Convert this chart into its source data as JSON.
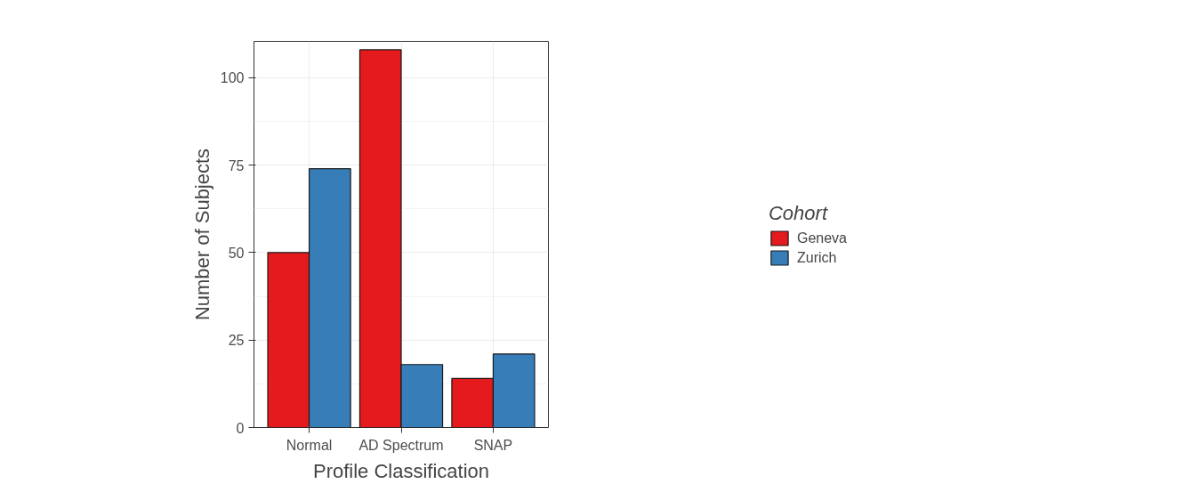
{
  "chart_data": {
    "type": "bar",
    "xlabel": "Profile Classification",
    "ylabel": "Number of Subjects",
    "legend_title": "Cohort",
    "categories": [
      "Normal",
      "AD Spectrum",
      "SNAP"
    ],
    "series": [
      {
        "name": "Geneva",
        "color": "#e41a1c",
        "values": [
          50,
          108,
          14
        ]
      },
      {
        "name": "Zurich",
        "color": "#377eb8",
        "values": [
          74,
          18,
          21
        ]
      }
    ],
    "ylim": [
      0,
      110.4
    ],
    "yticks": [
      0,
      25,
      50,
      75,
      100
    ],
    "grid": true,
    "legend": "right"
  }
}
